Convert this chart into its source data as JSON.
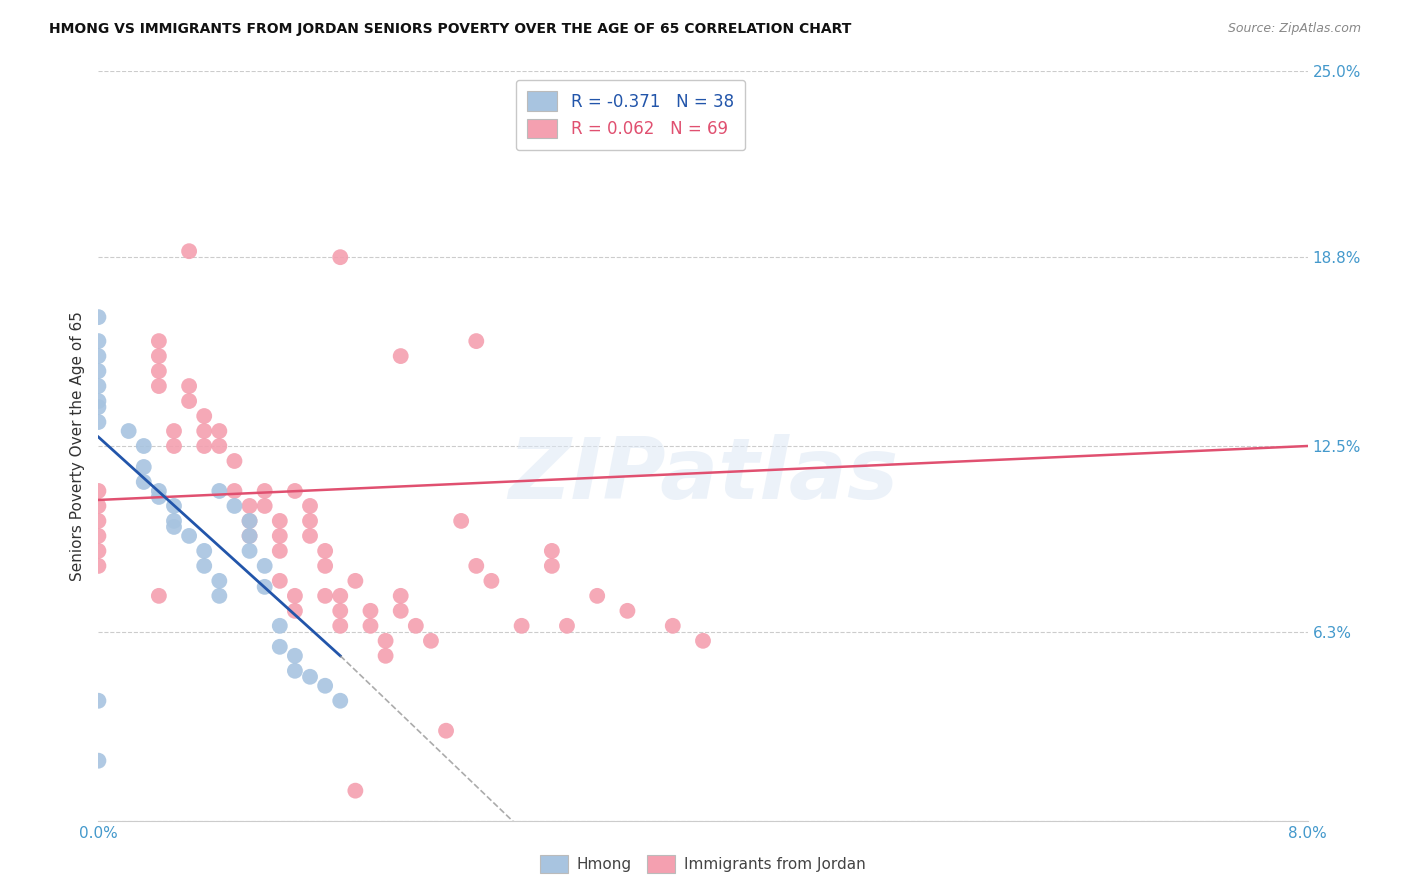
{
  "title": "HMONG VS IMMIGRANTS FROM JORDAN SENIORS POVERTY OVER THE AGE OF 65 CORRELATION CHART",
  "source": "Source: ZipAtlas.com",
  "ylabel": "Seniors Poverty Over the Age of 65",
  "xlim": [
    0.0,
    0.08
  ],
  "ylim": [
    0.0,
    0.25
  ],
  "ytick_positions": [
    0.0,
    0.063,
    0.125,
    0.188,
    0.25
  ],
  "yticklabels": [
    "",
    "6.3%",
    "12.5%",
    "18.8%",
    "25.0%"
  ],
  "hmong_color": "#a8c4e0",
  "jordan_color": "#f4a0b0",
  "hmong_line_color": "#2255aa",
  "jordan_line_color": "#e05070",
  "hmong_R": -0.371,
  "hmong_N": 38,
  "jordan_R": 0.062,
  "jordan_N": 69,
  "watermark": "ZIPatlas",
  "background_color": "#ffffff",
  "grid_color": "#cccccc",
  "hmong_x": [
    0.0,
    0.0,
    0.0,
    0.0,
    0.0,
    0.0,
    0.0,
    0.0,
    0.0,
    0.0,
    0.002,
    0.003,
    0.003,
    0.003,
    0.004,
    0.004,
    0.005,
    0.005,
    0.005,
    0.006,
    0.007,
    0.007,
    0.008,
    0.008,
    0.008,
    0.009,
    0.01,
    0.01,
    0.01,
    0.011,
    0.011,
    0.012,
    0.012,
    0.013,
    0.013,
    0.014,
    0.015,
    0.016
  ],
  "hmong_y": [
    0.04,
    0.168,
    0.16,
    0.155,
    0.15,
    0.145,
    0.14,
    0.138,
    0.133,
    0.02,
    0.13,
    0.125,
    0.118,
    0.113,
    0.11,
    0.108,
    0.105,
    0.1,
    0.098,
    0.095,
    0.09,
    0.085,
    0.08,
    0.075,
    0.11,
    0.105,
    0.1,
    0.095,
    0.09,
    0.085,
    0.078,
    0.065,
    0.058,
    0.055,
    0.05,
    0.048,
    0.045,
    0.04
  ],
  "jordan_x": [
    0.0,
    0.0,
    0.0,
    0.0,
    0.0,
    0.0,
    0.004,
    0.004,
    0.004,
    0.004,
    0.004,
    0.005,
    0.005,
    0.006,
    0.006,
    0.006,
    0.007,
    0.007,
    0.007,
    0.008,
    0.008,
    0.009,
    0.009,
    0.01,
    0.01,
    0.01,
    0.011,
    0.011,
    0.012,
    0.012,
    0.012,
    0.012,
    0.013,
    0.013,
    0.013,
    0.014,
    0.014,
    0.014,
    0.015,
    0.015,
    0.015,
    0.016,
    0.016,
    0.016,
    0.017,
    0.018,
    0.018,
    0.019,
    0.019,
    0.02,
    0.02,
    0.021,
    0.022,
    0.023,
    0.024,
    0.025,
    0.026,
    0.028,
    0.03,
    0.031,
    0.033,
    0.035,
    0.038,
    0.04,
    0.016,
    0.02,
    0.025,
    0.03,
    0.017
  ],
  "jordan_y": [
    0.11,
    0.105,
    0.1,
    0.095,
    0.09,
    0.085,
    0.16,
    0.155,
    0.15,
    0.145,
    0.075,
    0.13,
    0.125,
    0.19,
    0.145,
    0.14,
    0.135,
    0.13,
    0.125,
    0.13,
    0.125,
    0.12,
    0.11,
    0.105,
    0.1,
    0.095,
    0.11,
    0.105,
    0.1,
    0.095,
    0.09,
    0.08,
    0.075,
    0.07,
    0.11,
    0.105,
    0.1,
    0.095,
    0.09,
    0.085,
    0.075,
    0.075,
    0.07,
    0.065,
    0.08,
    0.07,
    0.065,
    0.06,
    0.055,
    0.075,
    0.07,
    0.065,
    0.06,
    0.03,
    0.1,
    0.085,
    0.08,
    0.065,
    0.085,
    0.065,
    0.075,
    0.07,
    0.065,
    0.06,
    0.188,
    0.155,
    0.16,
    0.09,
    0.01
  ]
}
